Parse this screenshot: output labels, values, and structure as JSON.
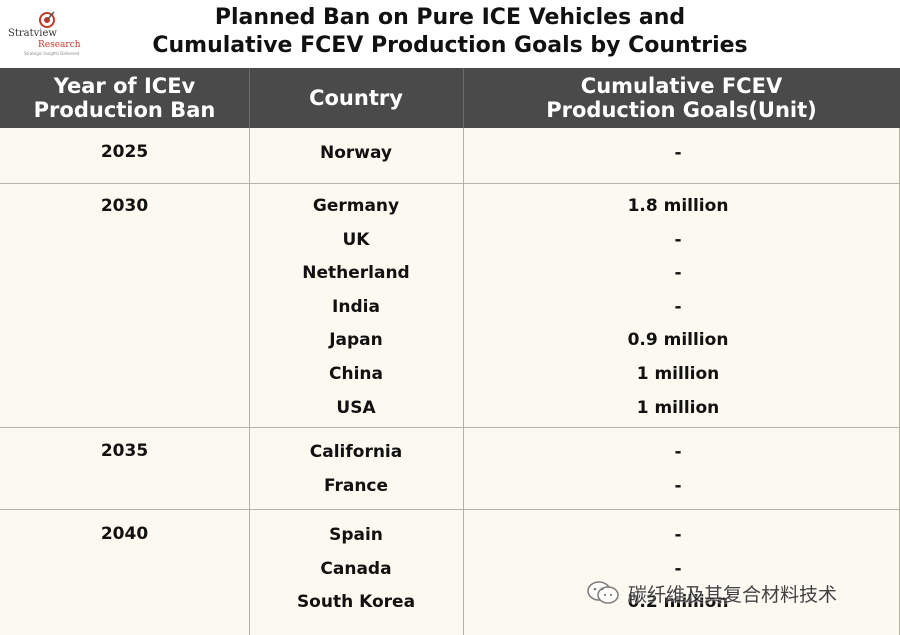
{
  "header": {
    "logo_name": "Stratview",
    "logo_sub": "Research",
    "logo_tag": "Strategic Insights Delivered",
    "title_line1": "Planned Ban on Pure ICE Vehicles and",
    "title_line2": "Cumulative FCEV Production Goals by Countries"
  },
  "table": {
    "headers": {
      "col1_line1": "Year of ICEv",
      "col1_line2": "Production Ban",
      "col2": "Country",
      "col3_line1": "Cumulative FCEV",
      "col3_line2": "Production Goals(Unit)"
    },
    "groups": [
      {
        "year": "2025",
        "rows": [
          {
            "country": "Norway",
            "goal": "-"
          }
        ]
      },
      {
        "year": "2030",
        "rows": [
          {
            "country": "Germany",
            "goal": "1.8 million"
          },
          {
            "country": "UK",
            "goal": "-"
          },
          {
            "country": "Netherland",
            "goal": "-"
          },
          {
            "country": "India",
            "goal": "-"
          },
          {
            "country": "Japan",
            "goal": "0.9 million"
          },
          {
            "country": "China",
            "goal": "1 million"
          },
          {
            "country": "USA",
            "goal": "1 million"
          }
        ]
      },
      {
        "year": "2035",
        "rows": [
          {
            "country": "California",
            "goal": "-"
          },
          {
            "country": "France",
            "goal": "-"
          }
        ]
      },
      {
        "year": "2040",
        "rows": [
          {
            "country": "Spain",
            "goal": "-"
          },
          {
            "country": "Canada",
            "goal": "-"
          },
          {
            "country": "South Korea",
            "goal": "0.2 million"
          }
        ]
      }
    ]
  },
  "watermark": {
    "text": "碳纤维及其复合材料技术",
    "icon": "wechat-icon"
  }
}
